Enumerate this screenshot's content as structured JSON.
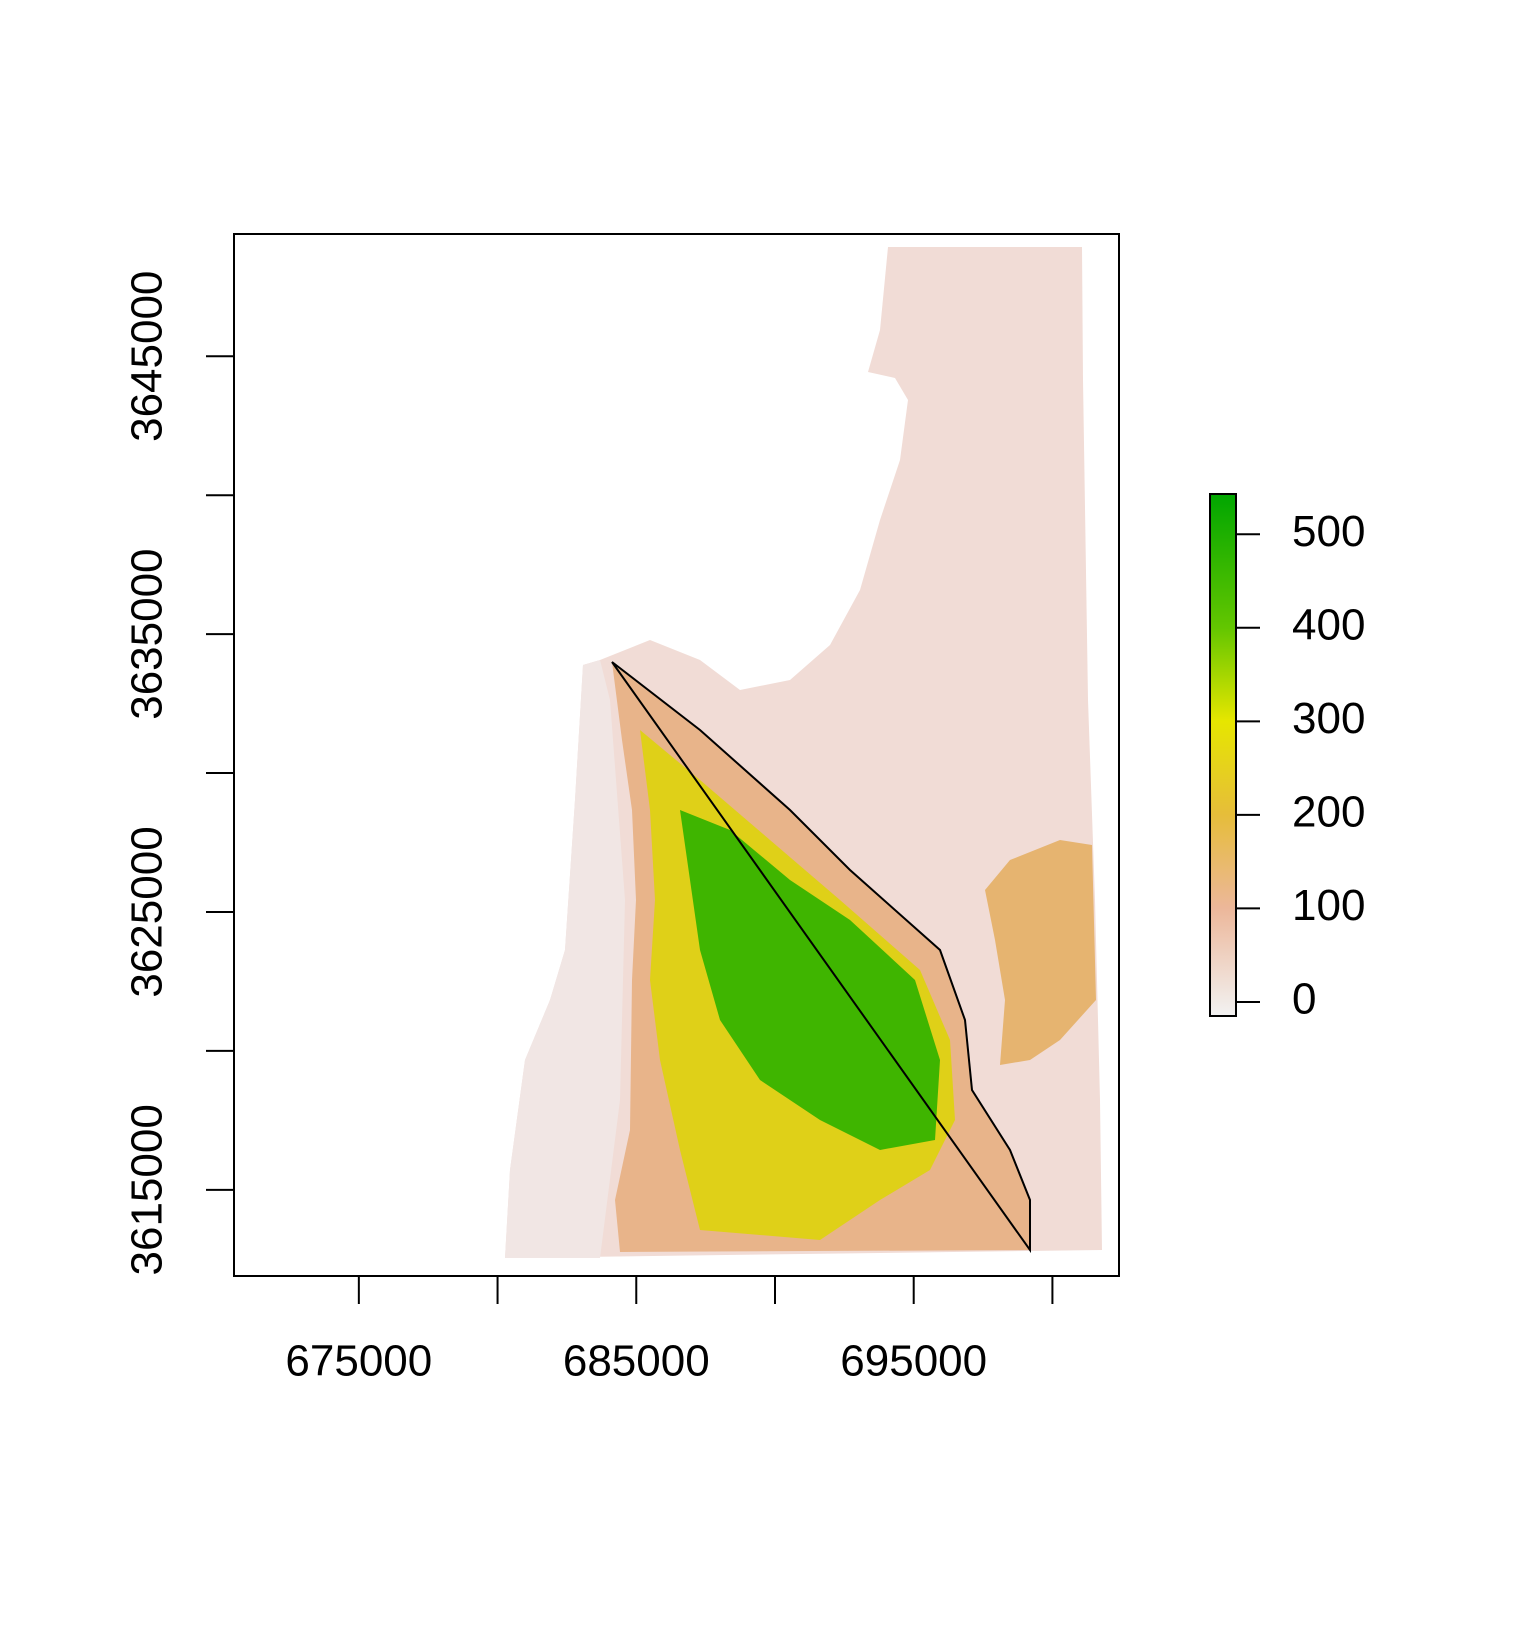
{
  "chart_data": {
    "type": "raster",
    "xlim": [
      670500,
      702400
    ],
    "ylim": [
      3611900,
      3649400
    ],
    "xticks": [
      675000,
      {
        "value": 680000,
        "label": null
      },
      685000,
      {
        "value": 690000,
        "label": null
      },
      695000,
      {
        "value": 700000,
        "label": null
      }
    ],
    "yticks": [
      {
        "value": 3615000,
        "label": "3615000"
      },
      {
        "value": 3620000,
        "label": null
      },
      3625000,
      {
        "value": 3630000,
        "label": null
      },
      3635000,
      {
        "value": 3640000,
        "label": null
      },
      3645000
    ],
    "zlim": [
      -15,
      543
    ],
    "zticks": [
      0,
      100,
      200,
      300,
      400,
      500
    ],
    "colorscale": [
      {
        "value": -15,
        "color": "#f2f2f2"
      },
      {
        "value": 100,
        "color": "#ecb79a"
      },
      {
        "value": 200,
        "color": "#e6bd3a"
      },
      {
        "value": 300,
        "color": "#e6e600"
      },
      {
        "value": 400,
        "color": "#63c600"
      },
      {
        "value": 543,
        "color": "#00a600"
      }
    ]
  }
}
